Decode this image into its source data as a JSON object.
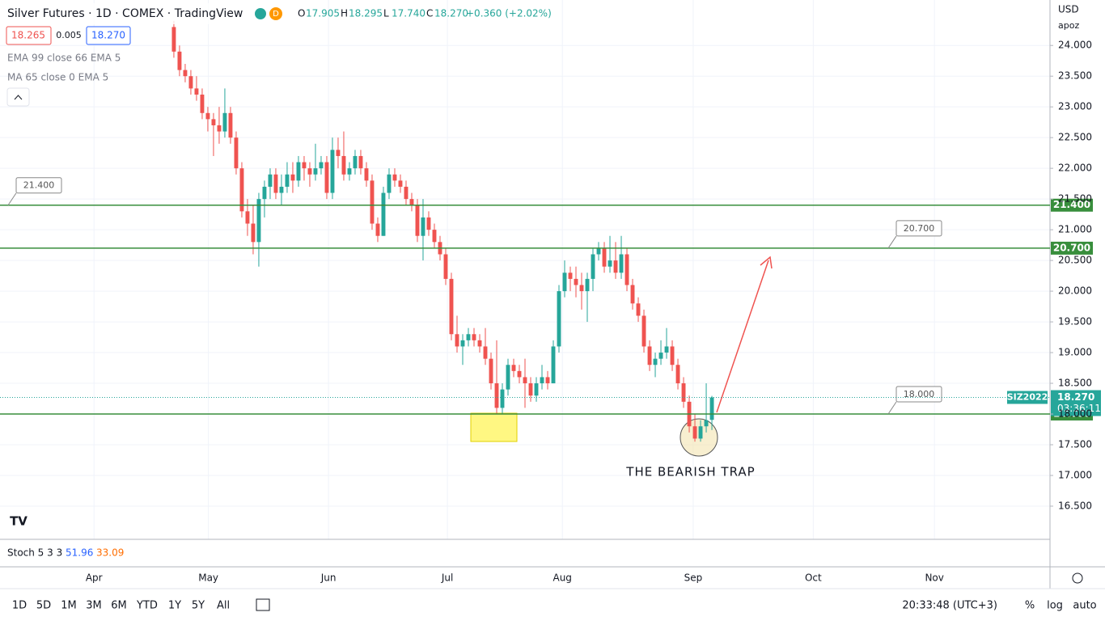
{
  "header": {
    "title": "Silver Futures · 1D · COMEX · TradingView",
    "badge": "D",
    "ohlc": [
      {
        "k": "O",
        "v": "17.905"
      },
      {
        "k": "H",
        "v": "18.295"
      },
      {
        "k": "L",
        "v": "17.740"
      },
      {
        "k": "C",
        "v": "18.270"
      }
    ],
    "change": "+0.360 (+2.02%)",
    "bid": "18.265",
    "spread": "0.005",
    "ask": "18.270",
    "indicators": [
      "EMA 99 close 66 EMA 5",
      "MA 65 close 0 EMA 5"
    ],
    "currency": "USD",
    "account": "apoz"
  },
  "stoch": {
    "name": "Stoch 5 3 3",
    "k": "51.96",
    "d": "33.09"
  },
  "toolbar": {
    "ranges": [
      "1D",
      "5D",
      "1M",
      "3M",
      "6M",
      "YTD",
      "1Y",
      "5Y",
      "All"
    ],
    "clock": "20:33:48 (UTC+3)",
    "options": [
      "%",
      "log",
      "auto"
    ]
  },
  "chart_data": {
    "type": "candlestick",
    "up_color": "#26a69a",
    "down_color": "#ef5350",
    "xlim": [
      -30.7,
      154.7
    ],
    "xticks": [
      {
        "value": -14.1,
        "label": "Apr"
      },
      {
        "value": 6.1,
        "label": "May"
      },
      {
        "value": 27.3,
        "label": "Jun"
      },
      {
        "value": 48.3,
        "label": "Jul"
      },
      {
        "value": 68.6,
        "label": "Aug"
      },
      {
        "value": 91.7,
        "label": "Sep"
      },
      {
        "value": 112.9,
        "label": "Oct"
      },
      {
        "value": 134.3,
        "label": "Nov"
      }
    ],
    "ylim": [
      15.96,
      24.74
    ],
    "yticks": [
      {
        "value": 16.5,
        "label": "16.500"
      },
      {
        "value": 17,
        "label": "17.000"
      },
      {
        "value": 17.5,
        "label": "17.500"
      },
      {
        "value": 18,
        "label": "18.000"
      },
      {
        "value": 18.5,
        "label": "18.500"
      },
      {
        "value": 19,
        "label": "19.000"
      },
      {
        "value": 19.5,
        "label": "19.500"
      },
      {
        "value": 20,
        "label": "20.000"
      },
      {
        "value": 20.5,
        "label": "20.500"
      },
      {
        "value": 21,
        "label": "21.000"
      },
      {
        "value": 21.5,
        "label": "21.500"
      },
      {
        "value": 22,
        "label": "22.000"
      },
      {
        "value": 22.5,
        "label": "22.500"
      },
      {
        "value": 23,
        "label": "23.000"
      },
      {
        "value": 23.5,
        "label": "23.500"
      },
      {
        "value": 24,
        "label": "24.000"
      }
    ],
    "grid": true,
    "levels": [
      {
        "value": 21.4,
        "label": "21.400"
      },
      {
        "value": 20.7,
        "label": "20.700"
      },
      {
        "value": 18,
        "label": "18.000"
      }
    ],
    "last_price": {
      "value": 18.27,
      "label": "18.270",
      "symbol": "SIZ2022",
      "countdown": "03:36:11"
    },
    "annotation": "THE BEARISH TRAP",
    "ohlc": [
      [
        24.3,
        24.4,
        23.8,
        23.9
      ],
      [
        23.9,
        24.0,
        23.5,
        23.6
      ],
      [
        23.6,
        23.7,
        23.4,
        23.5
      ],
      [
        23.5,
        23.6,
        23.2,
        23.3
      ],
      [
        23.3,
        23.5,
        23.1,
        23.2
      ],
      [
        23.2,
        23.3,
        22.8,
        22.9
      ],
      [
        22.9,
        23.0,
        22.6,
        22.8
      ],
      [
        22.8,
        22.9,
        22.2,
        22.7
      ],
      [
        22.7,
        23.0,
        22.4,
        22.6
      ],
      [
        22.6,
        23.3,
        22.5,
        22.9
      ],
      [
        22.9,
        23.0,
        22.4,
        22.5
      ],
      [
        22.5,
        22.6,
        21.9,
        22.0
      ],
      [
        22.0,
        22.1,
        21.2,
        21.3
      ],
      [
        21.3,
        21.5,
        20.9,
        21.1
      ],
      [
        21.1,
        21.4,
        20.6,
        20.8
      ],
      [
        20.8,
        21.6,
        20.4,
        21.5
      ],
      [
        21.5,
        21.8,
        21.2,
        21.7
      ],
      [
        21.7,
        22.0,
        21.5,
        21.9
      ],
      [
        21.9,
        22.0,
        21.5,
        21.6
      ],
      [
        21.6,
        21.9,
        21.4,
        21.7
      ],
      [
        21.7,
        22.1,
        21.6,
        21.9
      ],
      [
        21.9,
        22.1,
        21.6,
        21.8
      ],
      [
        21.8,
        22.2,
        21.7,
        22.1
      ],
      [
        22.1,
        22.2,
        21.8,
        22.0
      ],
      [
        22.0,
        22.1,
        21.7,
        21.9
      ],
      [
        21.9,
        22.4,
        21.8,
        22.0
      ],
      [
        22.0,
        22.2,
        21.9,
        22.1
      ],
      [
        22.1,
        22.2,
        21.5,
        21.6
      ],
      [
        21.6,
        22.5,
        21.5,
        22.3
      ],
      [
        22.3,
        22.5,
        22.0,
        22.2
      ],
      [
        22.2,
        22.6,
        21.8,
        21.9
      ],
      [
        21.9,
        22.1,
        21.8,
        22.0
      ],
      [
        22.0,
        22.3,
        21.9,
        22.2
      ],
      [
        22.2,
        22.3,
        21.9,
        22.0
      ],
      [
        22.0,
        22.1,
        21.7,
        21.8
      ],
      [
        21.8,
        21.9,
        21.0,
        21.1
      ],
      [
        21.1,
        21.2,
        20.8,
        20.9
      ],
      [
        20.9,
        21.7,
        20.9,
        21.6
      ],
      [
        21.6,
        22.0,
        21.5,
        21.9
      ],
      [
        21.9,
        22.0,
        21.7,
        21.8
      ],
      [
        21.8,
        21.9,
        21.6,
        21.7
      ],
      [
        21.7,
        21.8,
        21.4,
        21.5
      ],
      [
        21.5,
        21.6,
        21.3,
        21.4
      ],
      [
        21.4,
        21.5,
        20.8,
        20.9
      ],
      [
        20.9,
        21.5,
        20.5,
        21.2
      ],
      [
        21.2,
        21.3,
        20.9,
        21.0
      ],
      [
        21.0,
        21.1,
        20.7,
        20.8
      ],
      [
        20.8,
        20.9,
        20.5,
        20.6
      ],
      [
        20.6,
        20.7,
        20.1,
        20.2
      ],
      [
        20.2,
        20.3,
        19.2,
        19.3
      ],
      [
        19.3,
        19.6,
        19.0,
        19.1
      ],
      [
        19.1,
        19.3,
        18.8,
        19.2
      ],
      [
        19.2,
        19.4,
        19.1,
        19.3
      ],
      [
        19.3,
        19.4,
        19.1,
        19.2
      ],
      [
        19.2,
        19.3,
        19.0,
        19.1
      ],
      [
        19.1,
        19.4,
        18.8,
        18.9
      ],
      [
        18.9,
        19.0,
        18.4,
        18.5
      ],
      [
        18.5,
        19.2,
        18.0,
        18.1
      ],
      [
        18.1,
        18.5,
        18.0,
        18.4
      ],
      [
        18.4,
        18.9,
        18.3,
        18.8
      ],
      [
        18.8,
        18.9,
        18.6,
        18.7
      ],
      [
        18.7,
        18.8,
        18.5,
        18.6
      ],
      [
        18.6,
        18.9,
        18.1,
        18.5
      ],
      [
        18.5,
        18.6,
        18.2,
        18.3
      ],
      [
        18.3,
        18.6,
        18.2,
        18.5
      ],
      [
        18.5,
        18.8,
        18.4,
        18.6
      ],
      [
        18.6,
        18.7,
        18.4,
        18.5
      ],
      [
        18.5,
        19.2,
        18.5,
        19.1
      ],
      [
        19.1,
        20.1,
        19.0,
        20.0
      ],
      [
        20.0,
        20.5,
        19.9,
        20.3
      ],
      [
        20.3,
        20.4,
        20.0,
        20.2
      ],
      [
        20.2,
        20.4,
        19.9,
        20.1
      ],
      [
        20.1,
        20.3,
        19.7,
        20.0
      ],
      [
        20.0,
        20.3,
        19.5,
        20.2
      ],
      [
        20.2,
        20.7,
        20.0,
        20.6
      ],
      [
        20.6,
        20.8,
        20.5,
        20.7
      ],
      [
        20.7,
        20.8,
        20.3,
        20.4
      ],
      [
        20.4,
        20.9,
        20.3,
        20.5
      ],
      [
        20.5,
        20.8,
        20.2,
        20.3
      ],
      [
        20.3,
        20.9,
        20.2,
        20.6
      ],
      [
        20.6,
        20.7,
        20.0,
        20.1
      ],
      [
        20.1,
        20.2,
        19.7,
        19.8
      ],
      [
        19.8,
        19.9,
        19.5,
        19.6
      ],
      [
        19.6,
        19.7,
        19.0,
        19.1
      ],
      [
        19.1,
        19.2,
        18.7,
        18.8
      ],
      [
        18.8,
        19.0,
        18.6,
        18.9
      ],
      [
        18.9,
        19.2,
        18.8,
        19.0
      ],
      [
        19.0,
        19.4,
        18.9,
        19.1
      ],
      [
        19.1,
        19.2,
        18.7,
        18.8
      ],
      [
        18.8,
        18.9,
        18.4,
        18.5
      ],
      [
        18.5,
        18.6,
        18.1,
        18.2
      ],
      [
        18.2,
        18.3,
        17.7,
        17.8
      ],
      [
        17.8,
        18.0,
        17.55,
        17.6
      ],
      [
        17.6,
        17.9,
        17.55,
        17.8
      ],
      [
        17.8,
        18.5,
        17.7,
        17.9
      ],
      [
        17.905,
        18.295,
        17.74,
        18.27
      ]
    ]
  }
}
